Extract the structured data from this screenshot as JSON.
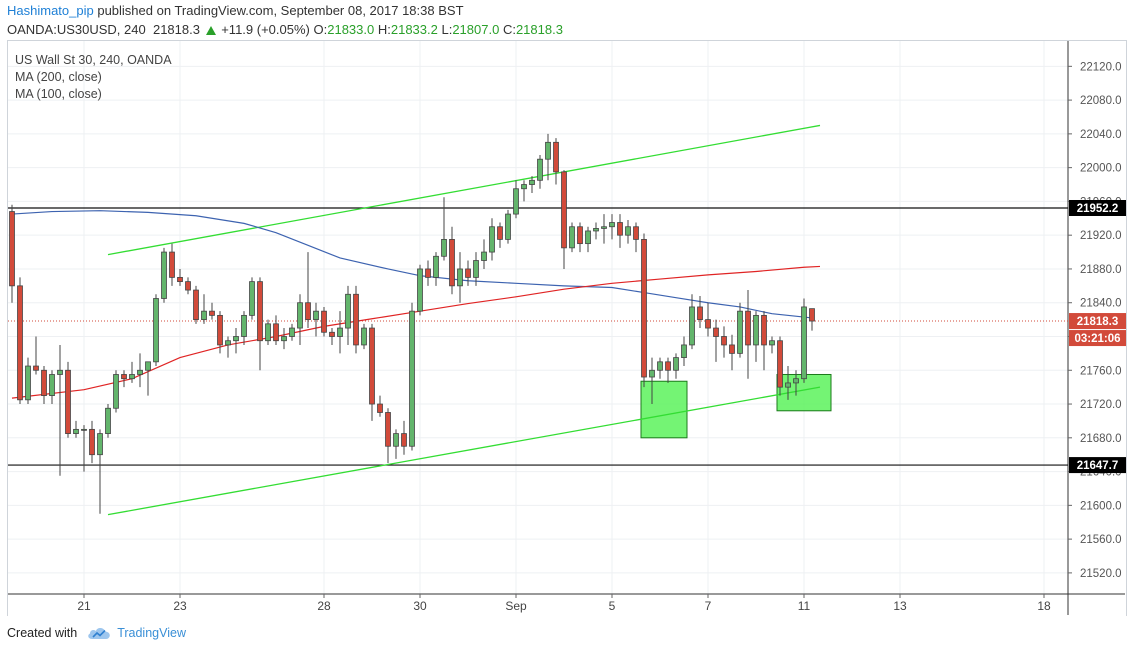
{
  "header": {
    "author": "Hashimato_pip",
    "published": "published on TradingView.com, September 08, 2017 18:38 BST",
    "symbol_line": "OANDA:US30USD, 240",
    "last": "21818.3",
    "change": "+11.9 (+0.05%)",
    "o_label": "O:",
    "o_value": "21833.0",
    "h_label": "H:",
    "h_value": "21833.2",
    "l_label": "L:",
    "l_value": "21807.0",
    "c_label": "C:",
    "c_value": "21818.3"
  },
  "legend": {
    "title": "US Wall St 30, 240, OANDA",
    "ma200": "MA (200, close)",
    "ma100": "MA (100, close)"
  },
  "footer": {
    "created_with": "Created with",
    "brand": "TradingView"
  },
  "colors": {
    "up": "#63b56c",
    "down": "#d24a3a",
    "ma200": "#e02424",
    "ma100": "#3d63b0",
    "channel": "#33dd33",
    "zone_fill": "#5cf25c",
    "zone_stroke": "#1c7a1c",
    "grid": "#eef0f3"
  },
  "chart_data": {
    "type": "candlestick",
    "x_tick_labels": [
      "21",
      "23",
      "28",
      "30",
      "Sep",
      "5",
      "7",
      "11",
      "13",
      "18"
    ],
    "x_tick_index": [
      18,
      30,
      48,
      60,
      72,
      84,
      96,
      108,
      120,
      138
    ],
    "y_ticks": [
      21520,
      21560,
      21600,
      21640,
      21680,
      21720,
      21760,
      21800,
      21840,
      21880,
      21920,
      21960,
      22000,
      22040,
      22080,
      22120
    ],
    "y_tick_labels": [
      "21520.0",
      "21560.0",
      "21600.0",
      "21640.0",
      "21680.0",
      "21720.0",
      "21760.0",
      "21800.0",
      "21840.0",
      "21880.0",
      "21920.0",
      "21960.0",
      "22000.0",
      "22040.0",
      "22080.0",
      "22120.0"
    ],
    "ylim": [
      21495,
      22150
    ],
    "xlim": [
      8.5,
      141
    ],
    "last_index": 106,
    "candles": [
      [
        9,
        21948,
        21956,
        21840,
        21860
      ],
      [
        10,
        21860,
        21870,
        21720,
        21725
      ],
      [
        11,
        21725,
        21775,
        21720,
        21765
      ],
      [
        12,
        21765,
        21800,
        21755,
        21760
      ],
      [
        13,
        21760,
        21765,
        21720,
        21730
      ],
      [
        14,
        21730,
        21760,
        21720,
        21755
      ],
      [
        15,
        21755,
        21790,
        21635,
        21760
      ],
      [
        16,
        21760,
        21770,
        21680,
        21685
      ],
      [
        17,
        21685,
        21700,
        21680,
        21690
      ],
      [
        18,
        21690,
        21695,
        21640,
        21690
      ],
      [
        19,
        21690,
        21700,
        21650,
        21660
      ],
      [
        20,
        21660,
        21690,
        21590,
        21685
      ],
      [
        21,
        21685,
        21720,
        21680,
        21715
      ],
      [
        22,
        21715,
        21760,
        21710,
        21755
      ],
      [
        23,
        21755,
        21760,
        21740,
        21750
      ],
      [
        24,
        21750,
        21770,
        21745,
        21755
      ],
      [
        25,
        21755,
        21780,
        21740,
        21760
      ],
      [
        26,
        21760,
        21770,
        21730,
        21770
      ],
      [
        27,
        21770,
        21850,
        21765,
        21845
      ],
      [
        28,
        21845,
        21905,
        21840,
        21900
      ],
      [
        29,
        21900,
        21910,
        21860,
        21870
      ],
      [
        30,
        21870,
        21880,
        21860,
        21865
      ],
      [
        31,
        21865,
        21870,
        21850,
        21855
      ],
      [
        32,
        21855,
        21860,
        21815,
        21820
      ],
      [
        33,
        21820,
        21850,
        21815,
        21830
      ],
      [
        34,
        21830,
        21840,
        21820,
        21825
      ],
      [
        35,
        21825,
        21830,
        21780,
        21790
      ],
      [
        36,
        21790,
        21800,
        21775,
        21795
      ],
      [
        37,
        21795,
        21810,
        21780,
        21800
      ],
      [
        38,
        21800,
        21830,
        21790,
        21825
      ],
      [
        39,
        21825,
        21870,
        21820,
        21865
      ],
      [
        40,
        21865,
        21870,
        21760,
        21795
      ],
      [
        41,
        21795,
        21820,
        21790,
        21815
      ],
      [
        42,
        21815,
        21825,
        21790,
        21795
      ],
      [
        43,
        21795,
        21810,
        21785,
        21800
      ],
      [
        44,
        21800,
        21815,
        21795,
        21810
      ],
      [
        45,
        21810,
        21850,
        21790,
        21840
      ],
      [
        46,
        21840,
        21900,
        21810,
        21820
      ],
      [
        47,
        21820,
        21840,
        21800,
        21830
      ],
      [
        48,
        21830,
        21835,
        21800,
        21805
      ],
      [
        49,
        21805,
        21810,
        21790,
        21800
      ],
      [
        50,
        21800,
        21830,
        21780,
        21810
      ],
      [
        51,
        21810,
        21860,
        21790,
        21850
      ],
      [
        52,
        21850,
        21860,
        21780,
        21790
      ],
      [
        53,
        21790,
        21815,
        21785,
        21810
      ],
      [
        54,
        21810,
        21815,
        21700,
        21720
      ],
      [
        55,
        21720,
        21730,
        21705,
        21710
      ],
      [
        56,
        21710,
        21715,
        21650,
        21670
      ],
      [
        57,
        21670,
        21690,
        21655,
        21685
      ],
      [
        58,
        21685,
        21700,
        21660,
        21670
      ],
      [
        59,
        21670,
        21840,
        21665,
        21830
      ],
      [
        60,
        21830,
        21885,
        21825,
        21880
      ],
      [
        61,
        21880,
        21890,
        21860,
        21870
      ],
      [
        62,
        21870,
        21900,
        21860,
        21895
      ],
      [
        63,
        21895,
        21965,
        21890,
        21915
      ],
      [
        64,
        21915,
        21930,
        21850,
        21860
      ],
      [
        65,
        21860,
        21900,
        21840,
        21880
      ],
      [
        66,
        21880,
        21890,
        21860,
        21870
      ],
      [
        67,
        21870,
        21900,
        21860,
        21890
      ],
      [
        68,
        21890,
        21915,
        21880,
        21900
      ],
      [
        69,
        21900,
        21940,
        21890,
        21930
      ],
      [
        70,
        21930,
        21935,
        21905,
        21915
      ],
      [
        71,
        21915,
        21950,
        21910,
        21945
      ],
      [
        72,
        21945,
        21985,
        21940,
        21975
      ],
      [
        73,
        21975,
        21985,
        21960,
        21980
      ],
      [
        74,
        21980,
        21990,
        21970,
        21985
      ],
      [
        75,
        21985,
        22015,
        21975,
        22010
      ],
      [
        76,
        22010,
        22040,
        21985,
        22030
      ],
      [
        77,
        22030,
        22035,
        21980,
        21995
      ],
      [
        78,
        21995,
        21997,
        21880,
        21905
      ],
      [
        79,
        21905,
        21935,
        21900,
        21930
      ],
      [
        80,
        21930,
        21935,
        21900,
        21910
      ],
      [
        81,
        21910,
        21930,
        21900,
        21925
      ],
      [
        82,
        21925,
        21935,
        21915,
        21928
      ],
      [
        83,
        21928,
        21945,
        21910,
        21930
      ],
      [
        84,
        21930,
        21945,
        21915,
        21935
      ],
      [
        85,
        21935,
        21945,
        21905,
        21920
      ],
      [
        86,
        21920,
        21938,
        21910,
        21930
      ],
      [
        87,
        21930,
        21935,
        21900,
        21915
      ],
      [
        88,
        21915,
        21922,
        21740,
        21752
      ],
      [
        89,
        21752,
        21775,
        21720,
        21760
      ],
      [
        90,
        21760,
        21775,
        21750,
        21770
      ],
      [
        91,
        21770,
        21775,
        21745,
        21760
      ],
      [
        92,
        21760,
        21780,
        21750,
        21775
      ],
      [
        93,
        21775,
        21800,
        21765,
        21790
      ],
      [
        94,
        21790,
        21850,
        21785,
        21835
      ],
      [
        95,
        21835,
        21848,
        21810,
        21820
      ],
      [
        96,
        21820,
        21840,
        21800,
        21810
      ],
      [
        97,
        21810,
        21820,
        21770,
        21800
      ],
      [
        98,
        21800,
        21812,
        21775,
        21790
      ],
      [
        99,
        21790,
        21802,
        21760,
        21780
      ],
      [
        100,
        21780,
        21840,
        21775,
        21830
      ],
      [
        101,
        21830,
        21855,
        21750,
        21790
      ],
      [
        102,
        21790,
        21830,
        21770,
        21825
      ],
      [
        103,
        21825,
        21830,
        21760,
        21790
      ],
      [
        104,
        21790,
        21800,
        21780,
        21795
      ],
      [
        105,
        21795,
        21800,
        21730,
        21740
      ],
      [
        106,
        21740,
        21765,
        21725,
        21745
      ],
      [
        107,
        21745,
        21760,
        21730,
        21750
      ],
      [
        108,
        21750,
        21845,
        21745,
        21835
      ],
      [
        109,
        21833.0,
        21833.2,
        21807.0,
        21818.3
      ]
    ],
    "ma200": [
      [
        9,
        21727
      ],
      [
        18,
        21737
      ],
      [
        24,
        21750
      ],
      [
        30,
        21775
      ],
      [
        36,
        21790
      ],
      [
        42,
        21800
      ],
      [
        48,
        21812
      ],
      [
        54,
        21821
      ],
      [
        60,
        21830
      ],
      [
        66,
        21839
      ],
      [
        72,
        21847
      ],
      [
        78,
        21856
      ],
      [
        84,
        21863
      ],
      [
        90,
        21868
      ],
      [
        96,
        21873
      ],
      [
        102,
        21877
      ],
      [
        108,
        21882
      ],
      [
        110,
        21883
      ]
    ],
    "ma100": [
      [
        9,
        21945
      ],
      [
        14,
        21948
      ],
      [
        20,
        21949
      ],
      [
        26,
        21947
      ],
      [
        32,
        21943
      ],
      [
        38,
        21934
      ],
      [
        42,
        21923
      ],
      [
        46,
        21908
      ],
      [
        50,
        21893
      ],
      [
        56,
        21880
      ],
      [
        60,
        21872
      ],
      [
        66,
        21866
      ],
      [
        72,
        21863
      ],
      [
        78,
        21860
      ],
      [
        84,
        21858
      ],
      [
        88,
        21852
      ],
      [
        92,
        21846
      ],
      [
        96,
        21840
      ],
      [
        100,
        21835
      ],
      [
        104,
        21827
      ],
      [
        108,
        21823
      ],
      [
        109,
        21822
      ]
    ],
    "channel_upper": [
      [
        21,
        21897
      ],
      [
        110,
        22050
      ]
    ],
    "channel_lower": [
      [
        21,
        21589
      ],
      [
        110,
        21740
      ]
    ],
    "h_lines": [
      21952.2,
      21647.7
    ],
    "zones": [
      {
        "x0": 88,
        "x1": 93,
        "y0": 21680,
        "y1": 21747
      },
      {
        "x0": 105,
        "x1": 111,
        "y0": 21712,
        "y1": 21755
      }
    ],
    "price_labels": [
      {
        "value": 21952.2,
        "text": "21952.2"
      },
      {
        "value": 21647.7,
        "text": "21647.7"
      },
      {
        "value": 21818.3,
        "text": "21818.3"
      }
    ],
    "countdown": "03:21:06"
  }
}
